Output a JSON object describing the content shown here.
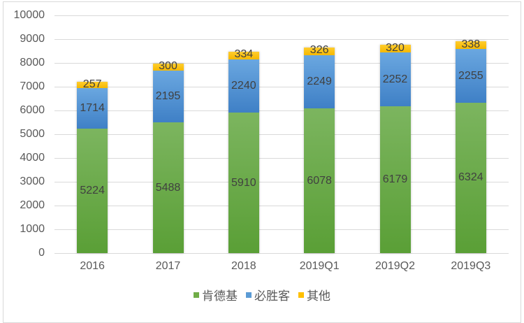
{
  "chart_data": {
    "type": "bar",
    "stacked": true,
    "title": "",
    "xlabel": "",
    "ylabel": "",
    "ylim": [
      0,
      10000
    ],
    "yticks": [
      0,
      1000,
      2000,
      3000,
      4000,
      5000,
      6000,
      7000,
      8000,
      9000,
      10000
    ],
    "categories": [
      "2016",
      "2017",
      "2018",
      "2019Q1",
      "2019Q2",
      "2019Q3"
    ],
    "series": [
      {
        "name": "肯德基",
        "color": "#70ad47",
        "values": [
          5224,
          5488,
          5910,
          6078,
          6179,
          6324
        ]
      },
      {
        "name": "必胜客",
        "color": "#5b9bd5",
        "values": [
          1714,
          2195,
          2240,
          2249,
          2252,
          2255
        ]
      },
      {
        "name": "其他",
        "color": "#ffc000",
        "values": [
          257,
          300,
          334,
          326,
          320,
          338
        ]
      }
    ],
    "grid": true,
    "legend_position": "bottom",
    "data_labels": true
  }
}
